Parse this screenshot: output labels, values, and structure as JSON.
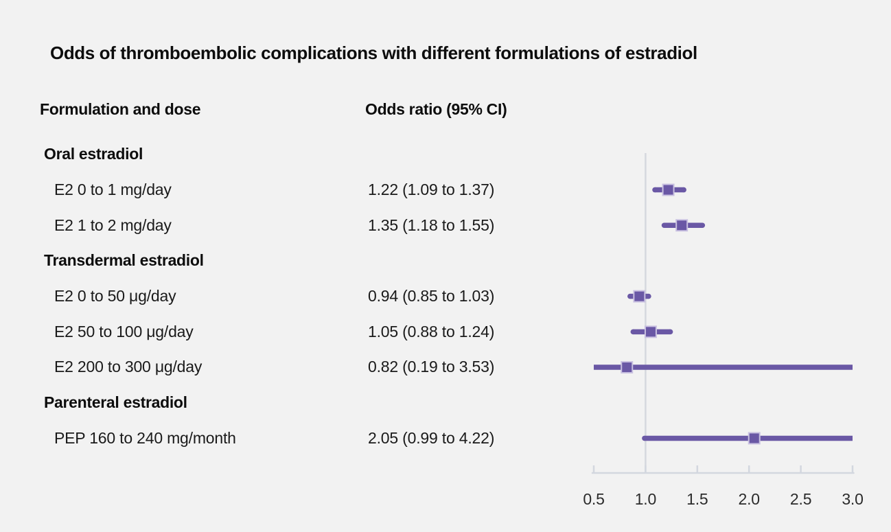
{
  "title": "Odds of thromboembolic complications with different formulations of estradiol",
  "columns": {
    "formulation": "Formulation and dose",
    "odds_ratio": "Odds ratio (95% CI)"
  },
  "colors": {
    "marker": "#6a58a5",
    "marker_edge": "#c9c1e1",
    "axis": "#d3d7df",
    "reference_line": "#d5d8de",
    "tick_label": "#2b2b2b",
    "background": "#f2f2f2"
  },
  "chart_data": {
    "type": "forest",
    "title": "Odds of thromboembolic complications with different formulations of estradiol",
    "xlabel": "",
    "ylabel": "",
    "axis": {
      "min": 0.5,
      "max": 3.0,
      "ticks": [
        0.5,
        1.0,
        1.5,
        2.0,
        2.5,
        3.0
      ],
      "tick_labels": [
        "0.5",
        "1.0",
        "1.5",
        "2.0",
        "2.5",
        "3.0"
      ],
      "reference_line": 1.0,
      "grid": false
    },
    "rows": [
      {
        "kind": "section",
        "label": "Oral estradiol"
      },
      {
        "kind": "item",
        "label": "E2 0 to 1 mg/day",
        "value_text": "1.22 (1.09 to 1.37)",
        "value": 1.22,
        "lo": 1.09,
        "hi": 1.37
      },
      {
        "kind": "item",
        "label": "E2 1 to 2 mg/day",
        "value_text": "1.35 (1.18 to 1.55)",
        "value": 1.35,
        "lo": 1.18,
        "hi": 1.55
      },
      {
        "kind": "section",
        "label": "Transdermal estradiol"
      },
      {
        "kind": "item",
        "label": "E2 0 to 50 μg/day",
        "value_text": "0.94 (0.85 to 1.03)",
        "value": 0.94,
        "lo": 0.85,
        "hi": 1.03
      },
      {
        "kind": "item",
        "label": "E2 50 to 100 μg/day",
        "value_text": "1.05 (0.88 to 1.24)",
        "value": 1.05,
        "lo": 0.88,
        "hi": 1.24
      },
      {
        "kind": "item",
        "label": "E2 200 to 300 μg/day",
        "value_text": "0.82 (0.19 to 3.53)",
        "value": 0.82,
        "lo": 0.19,
        "hi": 3.53
      },
      {
        "kind": "section",
        "label": "Parenteral estradiol"
      },
      {
        "kind": "item",
        "label": "PEP 160 to 240 mg/month",
        "value_text": "2.05 (0.99 to 4.22)",
        "value": 2.05,
        "lo": 0.99,
        "hi": 4.22
      }
    ]
  }
}
